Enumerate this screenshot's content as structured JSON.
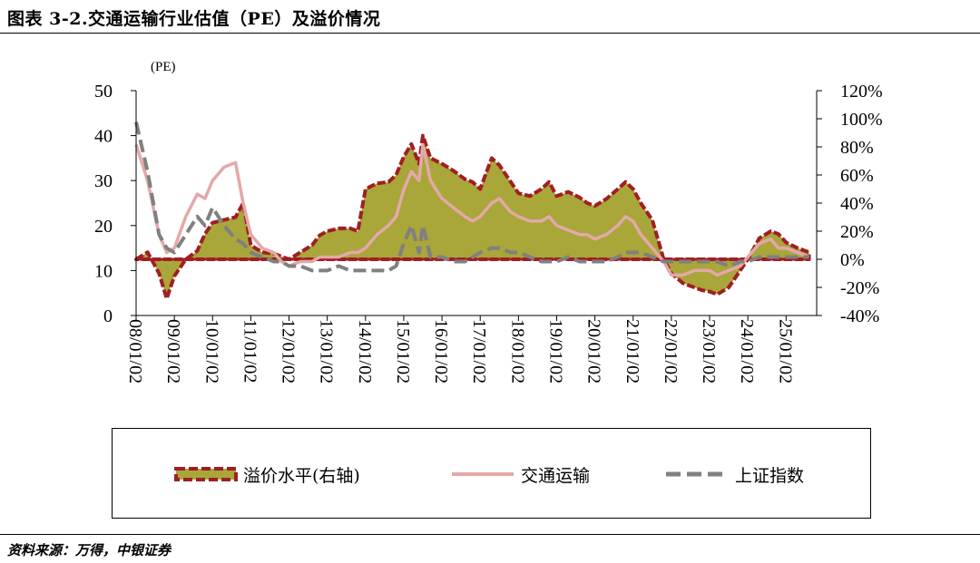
{
  "title": "图表 3-2.交通运输行业估值（PE）及溢价情况",
  "source": "资料来源：万得，中银证券",
  "colors": {
    "premium_fill": "#a9a63a",
    "premium_edge": "#a01e24",
    "transport": "#e4a8a9",
    "index": "#808080"
  },
  "chart_data": {
    "type": "area",
    "left_axis_title": "(PE)",
    "left_ylim": [
      0,
      50
    ],
    "left_ticks": [
      "50",
      "40",
      "30",
      "20",
      "10",
      "0"
    ],
    "right_ylim": [
      -40,
      120
    ],
    "right_ticks": [
      "120%",
      "100%",
      "80%",
      "60%",
      "40%",
      "20%",
      "0%",
      "-20%",
      "-40%"
    ],
    "x_labels": [
      "08/01/02",
      "09/01/02",
      "10/01/02",
      "11/01/02",
      "12/01/02",
      "13/01/02",
      "14/01/02",
      "15/01/02",
      "16/01/02",
      "17/01/02",
      "18/01/02",
      "19/01/02",
      "20/01/02",
      "21/01/02",
      "22/01/02",
      "23/01/02",
      "24/01/02",
      "25/01/02"
    ],
    "legend_location": "bottom",
    "series": [
      {
        "name": "溢价水平(右轴)",
        "axis": "right",
        "style": "area-dashed",
        "x": [
          2008.0,
          2008.3,
          2008.6,
          2008.8,
          2009.0,
          2009.3,
          2009.6,
          2009.8,
          2010.0,
          2010.3,
          2010.6,
          2010.8,
          2011.0,
          2011.3,
          2011.6,
          2011.8,
          2012.0,
          2012.3,
          2012.6,
          2012.8,
          2013.0,
          2013.3,
          2013.6,
          2013.8,
          2014.0,
          2014.3,
          2014.6,
          2014.8,
          2015.0,
          2015.2,
          2015.4,
          2015.5,
          2015.7,
          2016.0,
          2016.3,
          2016.6,
          2016.8,
          2017.0,
          2017.3,
          2017.5,
          2017.8,
          2018.0,
          2018.3,
          2018.6,
          2018.8,
          2019.0,
          2019.3,
          2019.6,
          2019.8,
          2020.0,
          2020.3,
          2020.6,
          2020.8,
          2021.0,
          2021.2,
          2021.5,
          2021.8,
          2022.0,
          2022.3,
          2022.6,
          2022.8,
          2023.0,
          2023.2,
          2023.5,
          2023.8,
          2024.0,
          2024.3,
          2024.6,
          2024.8,
          2025.0,
          2025.3,
          2025.6
        ],
        "values": [
          0,
          5,
          -10,
          -28,
          -12,
          0,
          6,
          18,
          26,
          28,
          30,
          40,
          10,
          5,
          4,
          2,
          0,
          5,
          10,
          17,
          20,
          22,
          22,
          20,
          50,
          54,
          55,
          60,
          73,
          82,
          68,
          88,
          72,
          68,
          63,
          57,
          55,
          50,
          72,
          67,
          55,
          47,
          45,
          50,
          55,
          45,
          48,
          44,
          40,
          38,
          43,
          50,
          55,
          50,
          40,
          28,
          0,
          -10,
          -17,
          -20,
          -22,
          -23,
          -25,
          -20,
          -8,
          0,
          15,
          20,
          18,
          12,
          8,
          5
        ]
      },
      {
        "name": "交通运输",
        "axis": "left",
        "style": "line",
        "x": [
          2008.0,
          2008.3,
          2008.6,
          2008.8,
          2009.0,
          2009.3,
          2009.6,
          2009.8,
          2010.0,
          2010.3,
          2010.6,
          2010.8,
          2011.0,
          2011.3,
          2011.6,
          2011.8,
          2012.0,
          2012.3,
          2012.6,
          2012.8,
          2013.0,
          2013.3,
          2013.6,
          2013.8,
          2014.0,
          2014.3,
          2014.6,
          2014.8,
          2015.0,
          2015.2,
          2015.4,
          2015.5,
          2015.7,
          2016.0,
          2016.3,
          2016.6,
          2016.8,
          2017.0,
          2017.3,
          2017.5,
          2017.8,
          2018.0,
          2018.3,
          2018.6,
          2018.8,
          2019.0,
          2019.3,
          2019.6,
          2019.8,
          2020.0,
          2020.3,
          2020.6,
          2020.8,
          2021.0,
          2021.2,
          2021.5,
          2021.8,
          2022.0,
          2022.3,
          2022.6,
          2022.8,
          2023.0,
          2023.2,
          2023.5,
          2023.8,
          2024.0,
          2024.3,
          2024.6,
          2024.8,
          2025.0,
          2025.3,
          2025.6
        ],
        "values": [
          38,
          30,
          18,
          14,
          15,
          22,
          27,
          26,
          30,
          33,
          34,
          25,
          18,
          15,
          14,
          12,
          11,
          12,
          12,
          13,
          13,
          13,
          14,
          14,
          15,
          18,
          20,
          22,
          28,
          32,
          30,
          38,
          30,
          26,
          24,
          22,
          21,
          22,
          25,
          26,
          23,
          22,
          21,
          21,
          22,
          20,
          19,
          18,
          18,
          17,
          18,
          20,
          22,
          21,
          18,
          15,
          12,
          9,
          9,
          10,
          10,
          10,
          9,
          10,
          11,
          13,
          16,
          17,
          15,
          15,
          14,
          13
        ]
      },
      {
        "name": "上证指数",
        "axis": "left",
        "style": "dashed",
        "x": [
          2008.0,
          2008.3,
          2008.6,
          2008.8,
          2009.0,
          2009.3,
          2009.6,
          2009.8,
          2010.0,
          2010.3,
          2010.6,
          2010.8,
          2011.0,
          2011.3,
          2011.6,
          2011.8,
          2012.0,
          2012.3,
          2012.6,
          2012.8,
          2013.0,
          2013.3,
          2013.6,
          2013.8,
          2014.0,
          2014.3,
          2014.6,
          2014.8,
          2015.0,
          2015.2,
          2015.4,
          2015.5,
          2015.7,
          2016.0,
          2016.3,
          2016.6,
          2016.8,
          2017.0,
          2017.3,
          2017.5,
          2017.8,
          2018.0,
          2018.3,
          2018.6,
          2018.8,
          2019.0,
          2019.3,
          2019.6,
          2019.8,
          2020.0,
          2020.3,
          2020.6,
          2020.8,
          2021.0,
          2021.2,
          2021.5,
          2021.8,
          2022.0,
          2022.3,
          2022.6,
          2022.8,
          2023.0,
          2023.2,
          2023.5,
          2023.8,
          2024.0,
          2024.3,
          2024.6,
          2024.8,
          2025.0,
          2025.3,
          2025.6
        ],
        "values": [
          43,
          32,
          18,
          15,
          14,
          18,
          22,
          20,
          24,
          20,
          17,
          16,
          14,
          13,
          12,
          12,
          11,
          11,
          10,
          10,
          10,
          11,
          10,
          10,
          10,
          10,
          10,
          11,
          16,
          20,
          14,
          20,
          13,
          13,
          12,
          12,
          13,
          14,
          15,
          15,
          14,
          14,
          13,
          12,
          12,
          12,
          13,
          12,
          12,
          12,
          12,
          13,
          14,
          14,
          14,
          13,
          12,
          12,
          12,
          12,
          12,
          12,
          12,
          11,
          12,
          12,
          13,
          13,
          13,
          13,
          13,
          13
        ]
      }
    ]
  }
}
